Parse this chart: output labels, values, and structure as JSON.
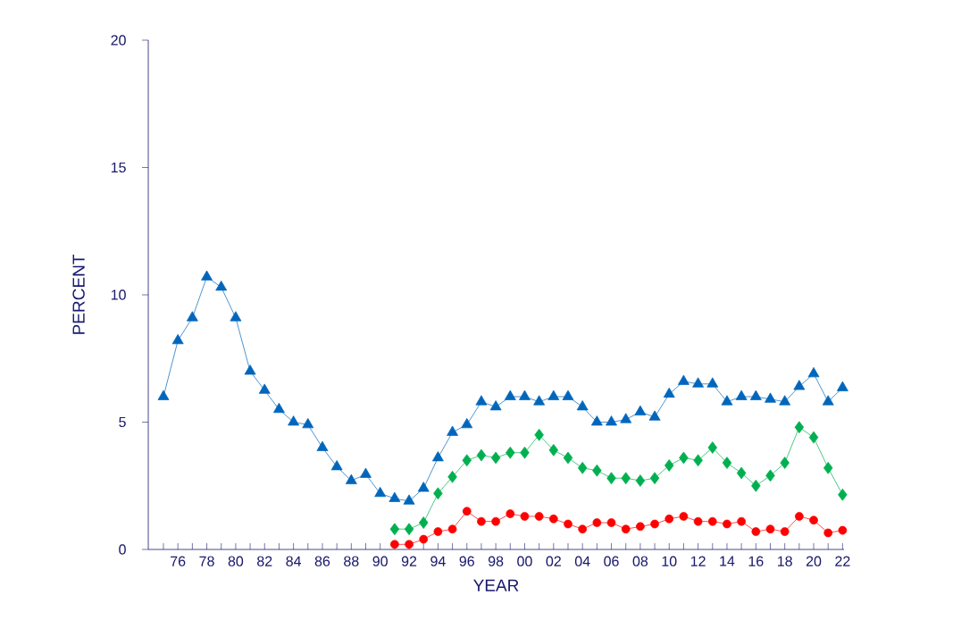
{
  "chart_data": {
    "type": "line",
    "xlabel": "YEAR",
    "ylabel": "PERCENT",
    "categories": [
      null,
      "76",
      null,
      "78",
      null,
      "80",
      null,
      "82",
      null,
      "84",
      null,
      "86",
      null,
      "88",
      null,
      "90",
      null,
      "92",
      null,
      "94",
      null,
      "96",
      null,
      "98",
      null,
      "00",
      null,
      "02",
      null,
      "04",
      null,
      "06",
      null,
      "08",
      null,
      "10",
      null,
      "12",
      null,
      "14",
      null,
      "16",
      null,
      "18",
      null,
      "20",
      null,
      "22"
    ],
    "ylim": [
      0,
      20
    ],
    "yticks": [
      0,
      5,
      10,
      15,
      20
    ],
    "grid": false,
    "series": [
      {
        "color": "#0066bb",
        "marker": "triangle",
        "values": [
          6.0,
          8.2,
          9.1,
          10.7,
          10.3,
          9.1,
          7.0,
          6.25,
          5.5,
          5.0,
          4.9,
          4.0,
          3.25,
          2.7,
          2.95,
          2.2,
          2.0,
          1.9,
          2.4,
          3.6,
          4.6,
          4.9,
          5.8,
          5.6,
          6.0,
          6.0,
          5.8,
          6.0,
          6.0,
          5.6,
          5.0,
          5.0,
          5.1,
          5.4,
          5.2,
          6.1,
          6.6,
          6.5,
          6.5,
          5.8,
          6.0,
          6.0,
          5.9,
          5.8,
          6.4,
          6.9,
          5.8,
          6.35
        ]
      },
      {
        "color": "#00b050",
        "marker": "diamond",
        "values": [
          null,
          null,
          null,
          null,
          null,
          null,
          null,
          null,
          null,
          null,
          null,
          null,
          null,
          null,
          null,
          null,
          0.8,
          0.8,
          1.05,
          2.2,
          2.85,
          3.5,
          3.7,
          3.6,
          3.8,
          3.8,
          4.5,
          3.9,
          3.6,
          3.2,
          3.1,
          2.8,
          2.8,
          2.7,
          2.8,
          3.3,
          3.6,
          3.5,
          4.0,
          3.4,
          3.0,
          2.5,
          2.9,
          3.4,
          4.8,
          4.4,
          3.2,
          2.15
        ]
      },
      {
        "color": "#ff0000",
        "marker": "circle",
        "values": [
          null,
          null,
          null,
          null,
          null,
          null,
          null,
          null,
          null,
          null,
          null,
          null,
          null,
          null,
          null,
          null,
          0.2,
          0.2,
          0.4,
          0.7,
          0.8,
          1.5,
          1.1,
          1.1,
          1.4,
          1.3,
          1.3,
          1.2,
          1.0,
          0.8,
          1.05,
          1.05,
          0.8,
          0.9,
          1.0,
          1.2,
          1.3,
          1.1,
          1.1,
          1.0,
          1.1,
          0.7,
          0.8,
          0.7,
          1.3,
          1.15,
          0.65,
          0.75
        ]
      }
    ]
  }
}
